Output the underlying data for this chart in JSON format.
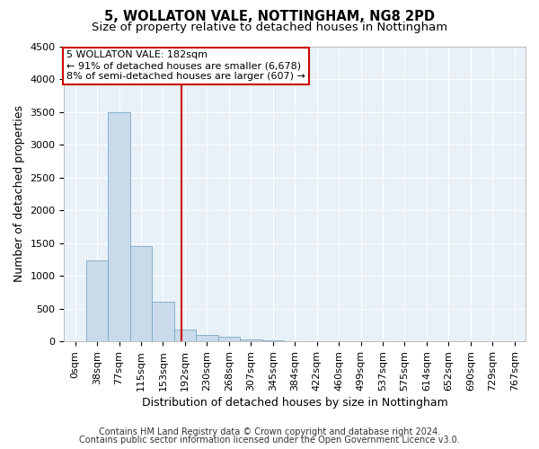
{
  "title1": "5, WOLLATON VALE, NOTTINGHAM, NG8 2PD",
  "title2": "Size of property relative to detached houses in Nottingham",
  "xlabel": "Distribution of detached houses by size in Nottingham",
  "ylabel": "Number of detached properties",
  "bar_color": "#c9daea",
  "bar_edge_color": "#7aaac8",
  "bg_color": "#e8f0f8",
  "grid_color": "#ffffff",
  "annotation_box_color": "#cc0000",
  "property_line_color": "#cc0000",
  "annotation_line1": "5 WOLLATON VALE: 182sqm",
  "annotation_line2": "← 91% of detached houses are smaller (6,678)",
  "annotation_line3": "8% of semi-detached houses are larger (607) →",
  "categories": [
    "0sqm",
    "38sqm",
    "77sqm",
    "115sqm",
    "153sqm",
    "192sqm",
    "230sqm",
    "268sqm",
    "307sqm",
    "345sqm",
    "384sqm",
    "422sqm",
    "460sqm",
    "499sqm",
    "537sqm",
    "575sqm",
    "614sqm",
    "652sqm",
    "690sqm",
    "729sqm",
    "767sqm"
  ],
  "values": [
    0,
    1230,
    3500,
    1460,
    610,
    175,
    105,
    65,
    30,
    12,
    5,
    2,
    0,
    0,
    0,
    0,
    0,
    0,
    0,
    0,
    0
  ],
  "property_line_x": 4.82,
  "ylim": [
    0,
    4500
  ],
  "yticks": [
    0,
    500,
    1000,
    1500,
    2000,
    2500,
    3000,
    3500,
    4000,
    4500
  ],
  "footer1": "Contains HM Land Registry data © Crown copyright and database right 2024.",
  "footer2": "Contains public sector information licensed under the Open Government Licence v3.0.",
  "title_fontsize": 10.5,
  "subtitle_fontsize": 9.5,
  "axis_label_fontsize": 9,
  "tick_fontsize": 8,
  "annotation_fontsize": 8,
  "footer_fontsize": 7
}
